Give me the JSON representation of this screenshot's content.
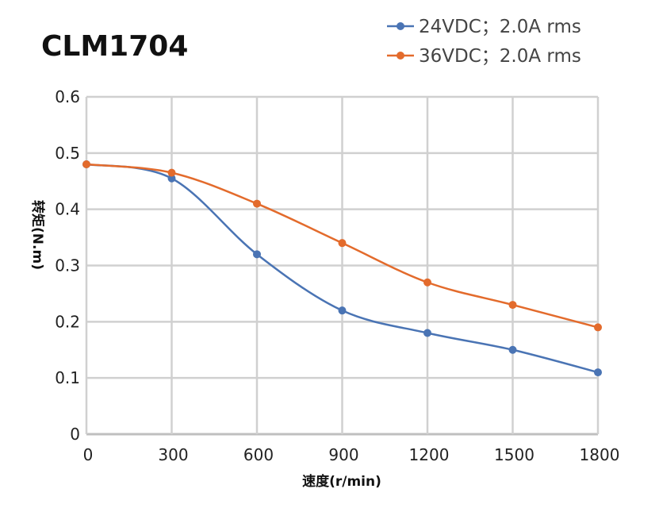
{
  "chart_data": {
    "type": "line",
    "title": "CLM1704",
    "xlabel": "速度(r/min)",
    "ylabel": "转矩(N.m)",
    "x": [
      0,
      300,
      600,
      900,
      1200,
      1500,
      1800
    ],
    "xticks": [
      "0",
      "300",
      "600",
      "900",
      "1200",
      "1500",
      "1800"
    ],
    "yticks": [
      "0",
      "0.1",
      "0.2",
      "0.3",
      "0.4",
      "0.5",
      "0.6"
    ],
    "xlim": [
      0,
      1800
    ],
    "ylim": [
      0,
      0.6
    ],
    "grid": true,
    "legend_position": "top-right",
    "series": [
      {
        "name": "24VDC；2.0A rms",
        "color": "#4a74b4",
        "values": [
          0.48,
          0.455,
          0.32,
          0.22,
          0.18,
          0.15,
          0.11
        ]
      },
      {
        "name": "36VDC；2.0A rms",
        "color": "#e36b2c",
        "values": [
          0.48,
          0.465,
          0.41,
          0.34,
          0.27,
          0.23,
          0.19
        ]
      }
    ]
  }
}
